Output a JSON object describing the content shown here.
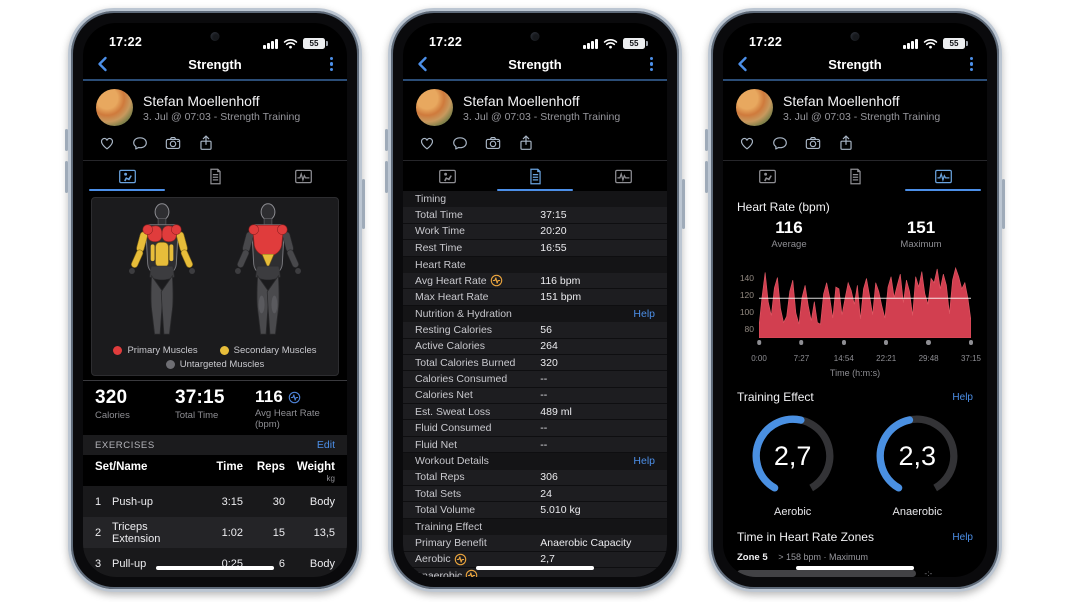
{
  "accent": {
    "link_blue": "#4c8fe8",
    "tab_active_blue": "#4c8fe8",
    "chart_red": "#d23f50",
    "gauge_blue": "#4a90e2",
    "hr_icon_blue": "#4d82d6",
    "hr_icon_orange": "#e8a33d",
    "primary_red": "#e03c3c",
    "secondary_yellow": "#e7bd3a",
    "untargeted_gray": "#6e6e73"
  },
  "status_bar": {
    "time": "17:22",
    "battery_percent": "55"
  },
  "nav": {
    "title": "Strength"
  },
  "profile": {
    "name": "Stefan Moellenhoff",
    "subtitle": "3. Jul @ 07:03 - Strength Training"
  },
  "social_icons": [
    "heart",
    "comment",
    "camera",
    "share"
  ],
  "tabs": [
    {
      "name": "muscle-map"
    },
    {
      "name": "stats"
    },
    {
      "name": "charts"
    }
  ],
  "phone1": {
    "legend": [
      {
        "label": "Primary Muscles",
        "color": "#e03c3c"
      },
      {
        "label": "Secondary Muscles",
        "color": "#e7bd3a"
      },
      {
        "label": "Untargeted Muscles",
        "color": "#6e6e73"
      }
    ],
    "summary": [
      {
        "value": "320",
        "label": "Calories"
      },
      {
        "value": "37:15",
        "label": "Total Time"
      },
      {
        "value": "116",
        "label": "Avg Heart Rate (bpm)",
        "icon": "heart-rate"
      }
    ],
    "exercises": {
      "header": "EXERCISES",
      "edit_label": "Edit",
      "columns": {
        "name": "Set/Name",
        "time": "Time",
        "reps": "Reps",
        "weight": "Weight",
        "weight_unit": "kg"
      },
      "rows": [
        {
          "set": "1",
          "name": "Push-up",
          "time": "3:15",
          "reps": "30",
          "weight": "Body"
        },
        {
          "set": "2",
          "name": "Triceps Extension",
          "time": "1:02",
          "reps": "15",
          "weight": "13,5"
        },
        {
          "set": "3",
          "name": "Pull-up",
          "time": "0:25",
          "reps": "6",
          "weight": "Body"
        }
      ]
    }
  },
  "phone2": {
    "rows": [
      {
        "type": "section",
        "label": "Timing"
      },
      {
        "type": "row",
        "label": "Total Time",
        "value": "37:15"
      },
      {
        "type": "row",
        "label": "Work Time",
        "value": "20:20"
      },
      {
        "type": "row",
        "label": "Rest Time",
        "value": "16:55"
      },
      {
        "type": "section",
        "label": "Heart Rate"
      },
      {
        "type": "row",
        "label": "Avg Heart Rate",
        "value": "116 bpm",
        "icon": "heart-rate-orange"
      },
      {
        "type": "row",
        "label": "Max Heart Rate",
        "value": "151 bpm"
      },
      {
        "type": "section",
        "label": "Nutrition & Hydration",
        "link": "Help"
      },
      {
        "type": "row",
        "label": "Resting Calories",
        "value": "56"
      },
      {
        "type": "row",
        "label": "Active Calories",
        "value": "264"
      },
      {
        "type": "row",
        "label": "Total Calories Burned",
        "value": "320"
      },
      {
        "type": "row",
        "label": "Calories Consumed",
        "value": "--"
      },
      {
        "type": "row",
        "label": "Calories Net",
        "value": "--"
      },
      {
        "type": "row",
        "label": "Est. Sweat Loss",
        "value": "489 ml"
      },
      {
        "type": "row",
        "label": "Fluid Consumed",
        "value": "--"
      },
      {
        "type": "row",
        "label": "Fluid Net",
        "value": "--"
      },
      {
        "type": "section",
        "label": "Workout Details",
        "link": "Help"
      },
      {
        "type": "row",
        "label": "Total Reps",
        "value": "306"
      },
      {
        "type": "row",
        "label": "Total Sets",
        "value": "24"
      },
      {
        "type": "row",
        "label": "Total Volume",
        "value": "5.010 kg"
      },
      {
        "type": "section",
        "label": "Training Effect"
      },
      {
        "type": "row",
        "label": "Primary Benefit",
        "value": "Anaerobic Capacity"
      },
      {
        "type": "row",
        "label": "Aerobic",
        "value": "2,7",
        "icon": "heart-rate-orange"
      },
      {
        "type": "row",
        "label": "Anaerobic",
        "value": "",
        "icon": "heart-rate-orange"
      }
    ]
  },
  "phone3": {
    "hr_title": "Heart Rate (bpm)",
    "average": {
      "value": "116",
      "label": "Average"
    },
    "maximum": {
      "value": "151",
      "label": "Maximum"
    },
    "training_effect": {
      "title": "Training Effect",
      "help": "Help",
      "gauges": [
        {
          "value": "2,7",
          "numeric": 2.7,
          "max": 5,
          "label": "Aerobic"
        },
        {
          "value": "2,3",
          "numeric": 2.3,
          "max": 5,
          "label": "Anaerobic"
        }
      ]
    },
    "zones": {
      "title": "Time in Heart Rate Zones",
      "help": "Help",
      "rows": [
        {
          "zone": "Zone 5",
          "range": "> 158 bpm · Maximum",
          "value": "-:-"
        }
      ]
    }
  },
  "chart_data": {
    "type": "area",
    "title": "Heart Rate (bpm)",
    "xlabel": "Time (h:m:s)",
    "ylabel": "",
    "x_ticks": [
      "0:00",
      "7:27",
      "14:54",
      "22:21",
      "29:48",
      "37:15"
    ],
    "y_ticks": [
      80,
      100,
      120,
      140
    ],
    "ylim": [
      70,
      158
    ],
    "average": 116,
    "maximum": 151,
    "legend": "none",
    "grid": "average-line-only",
    "samples": [
      84,
      118,
      146,
      112,
      96,
      128,
      140,
      104,
      88,
      95,
      124,
      137,
      99,
      86,
      117,
      131,
      108,
      90,
      112,
      88,
      86,
      121,
      134,
      117,
      93,
      129,
      127,
      97,
      116,
      134,
      125,
      109,
      131,
      92,
      127,
      139,
      119,
      97,
      134,
      124,
      107,
      93,
      129,
      141,
      117,
      131,
      144,
      111,
      137,
      124,
      96,
      141,
      129,
      147,
      121,
      109,
      139,
      134,
      150,
      127,
      144,
      131,
      98,
      137,
      151,
      141,
      127,
      134,
      116,
      90
    ]
  }
}
